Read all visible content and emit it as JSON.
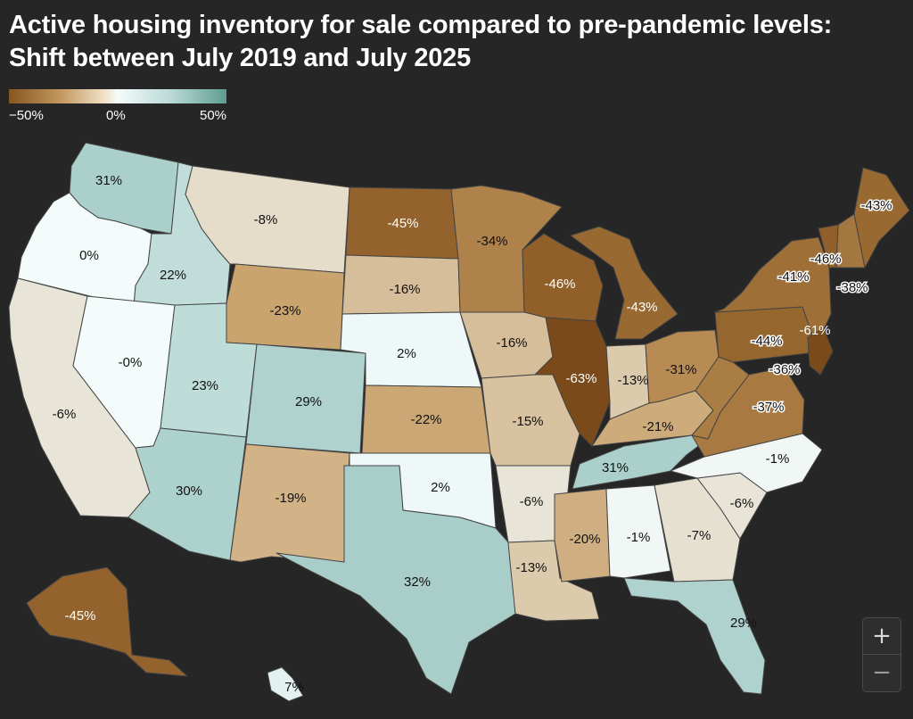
{
  "title": {
    "line1": "Active housing inventory for sale compared to pre-pandemic levels:",
    "line2": "Shift between July 2019 and July 2025"
  },
  "legend": {
    "min_label": "−50%",
    "mid_label": "0%",
    "max_label": "50%",
    "colors": [
      "#87551f",
      "#c69c63",
      "#f3fbfb",
      "#b9d9d5",
      "#5f9c92"
    ]
  },
  "zoom": {
    "in_label": "+",
    "out_label": "−"
  },
  "states": [
    {
      "id": "WA",
      "label": "31%",
      "value": 31
    },
    {
      "id": "OR",
      "label": "0%",
      "value": 0
    },
    {
      "id": "CA",
      "label": "-6%",
      "value": -6
    },
    {
      "id": "ID",
      "label": "22%",
      "value": 22
    },
    {
      "id": "NV",
      "label": "-0%",
      "value": 0
    },
    {
      "id": "MT",
      "label": "-8%",
      "value": -8
    },
    {
      "id": "WY",
      "label": "-23%",
      "value": -23
    },
    {
      "id": "UT",
      "label": "23%",
      "value": 23
    },
    {
      "id": "AZ",
      "label": "30%",
      "value": 30
    },
    {
      "id": "CO",
      "label": "29%",
      "value": 29
    },
    {
      "id": "NM",
      "label": "-19%",
      "value": -19
    },
    {
      "id": "ND",
      "label": "-45%",
      "value": -45
    },
    {
      "id": "SD",
      "label": "-16%",
      "value": -16
    },
    {
      "id": "NE",
      "label": "2%",
      "value": 2
    },
    {
      "id": "KS",
      "label": "-22%",
      "value": -22
    },
    {
      "id": "OK",
      "label": "2%",
      "value": 2
    },
    {
      "id": "TX",
      "label": "32%",
      "value": 32
    },
    {
      "id": "MN",
      "label": "-34%",
      "value": -34
    },
    {
      "id": "IA",
      "label": "-16%",
      "value": -16
    },
    {
      "id": "MO",
      "label": "-15%",
      "value": -15
    },
    {
      "id": "AR",
      "label": "-6%",
      "value": -6
    },
    {
      "id": "LA",
      "label": "-13%",
      "value": -13
    },
    {
      "id": "WI",
      "label": "-46%",
      "value": -46
    },
    {
      "id": "IL",
      "label": "-63%",
      "value": -63
    },
    {
      "id": "MI",
      "label": "-43%",
      "value": -43
    },
    {
      "id": "IN",
      "label": "-13%",
      "value": -13
    },
    {
      "id": "OH",
      "label": "-31%",
      "value": -31
    },
    {
      "id": "KY",
      "label": "-21%",
      "value": -21
    },
    {
      "id": "TN",
      "label": "31%",
      "value": 31
    },
    {
      "id": "MS",
      "label": "-20%",
      "value": -20
    },
    {
      "id": "AL",
      "label": "-1%",
      "value": -1
    },
    {
      "id": "GA",
      "label": "-7%",
      "value": -7
    },
    {
      "id": "FL",
      "label": "29%",
      "value": 29
    },
    {
      "id": "SC",
      "label": "-6%",
      "value": -6
    },
    {
      "id": "NC",
      "label": "-1%",
      "value": -1
    },
    {
      "id": "VA",
      "label": "-37%",
      "value": -37
    },
    {
      "id": "WV",
      "label": "-36%",
      "value": -36
    },
    {
      "id": "PA",
      "label": "-44%",
      "value": -44
    },
    {
      "id": "NY",
      "label": "-41%",
      "value": -41
    },
    {
      "id": "NJ",
      "label": "-61%",
      "value": -61
    },
    {
      "id": "VT",
      "label": "-46%",
      "value": -46
    },
    {
      "id": "NH",
      "label": "-38%",
      "value": -38
    },
    {
      "id": "ME",
      "label": "-43%",
      "value": -43
    },
    {
      "id": "AK",
      "label": "-45%",
      "value": -45
    },
    {
      "id": "HI",
      "label": "7%",
      "value": 7
    }
  ]
}
